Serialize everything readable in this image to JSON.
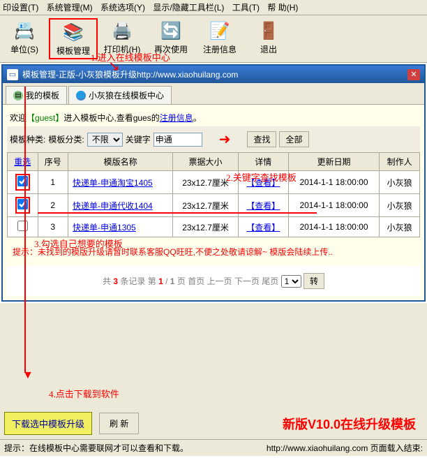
{
  "menu": {
    "i": [
      "印设置(T)",
      "系统管理(M)",
      "系统选项(Y)",
      "显示/隐藏工具栏(L)",
      "工具(T)",
      "帮 助(H)"
    ]
  },
  "toolbar": [
    {
      "icon": "📇",
      "label": "单位(S)"
    },
    {
      "icon": "📚",
      "label": "模板管理"
    },
    {
      "icon": "🖨️",
      "label": "打印机(H)"
    },
    {
      "icon": "🔄",
      "label": "再次使用"
    },
    {
      "icon": "📝",
      "label": "注册信息"
    },
    {
      "icon": "🚪",
      "label": "退出"
    }
  ],
  "annotations": {
    "a1": "1.进入在线模板中心",
    "a2": "2.关键字查找模板",
    "a3": "3.勾选自己想要的模板",
    "a4": "4.点击下载到软件",
    "footer_big": "新版V10.0在线升级模板"
  },
  "window": {
    "title_a": "模板管理-正版-小灰狼模板升级",
    "title_b": "http://www.xiaohuilang.com"
  },
  "tabs": {
    "t1": "我的模板",
    "t2": "小灰狼在线模板中心"
  },
  "welcome": {
    "p1": "欢迎",
    "guest": "【guest】",
    "p2": "进入模板中心,查看gues的",
    "link": "注册信息",
    "dot": "。"
  },
  "search": {
    "l1": "模板种类:",
    "l2": "模板分类:",
    "opt1": "不限",
    "l3": "关键字",
    "val": "申通",
    "btn1": "查找",
    "btn2": "全部"
  },
  "columns": [
    "重选",
    "序号",
    "模版名称",
    "票据大小",
    "详情",
    "更新日期",
    "制作人"
  ],
  "rows": [
    {
      "chk": true,
      "no": "1",
      "name": "快递单-申通淘宝1405",
      "size": "23x12.7厘米",
      "detail": "【查看】",
      "date": "2014-1-1 18:00:00",
      "author": "小灰狼"
    },
    {
      "chk": true,
      "no": "2",
      "name": "快递单-申通代收1404",
      "size": "23x12.7厘米",
      "detail": "【查看】",
      "date": "2014-1-1 18:00:00",
      "author": "小灰狼"
    },
    {
      "chk": false,
      "no": "3",
      "name": "快递单-申通1305",
      "size": "23x12.7厘米",
      "detail": "【查看】",
      "date": "2014-1-1 18:00:00",
      "author": "小灰狼"
    }
  ],
  "hint": "提示：未找到的模版升级请暂时联系客服QQ旺旺,不便之处敬请谅解~ 模版会陆续上传..",
  "pager": {
    "t1": "共",
    "cnt": "3",
    "t2": "条记录 第",
    "pg": "1",
    "t3": "/",
    "tot": "1",
    "t4": "页",
    "fp": "首页",
    "pp": "上一页",
    "np": "下一页",
    "lp": "尾页",
    "go": "转"
  },
  "footer": {
    "b1": "下载选中模板升级",
    "b2": "刷  新"
  },
  "status": {
    "l": "提示：在线模板中心需要联网才可以查看和下载。",
    "r": "http://www.xiaohuilang.com 页面载入结束:"
  }
}
